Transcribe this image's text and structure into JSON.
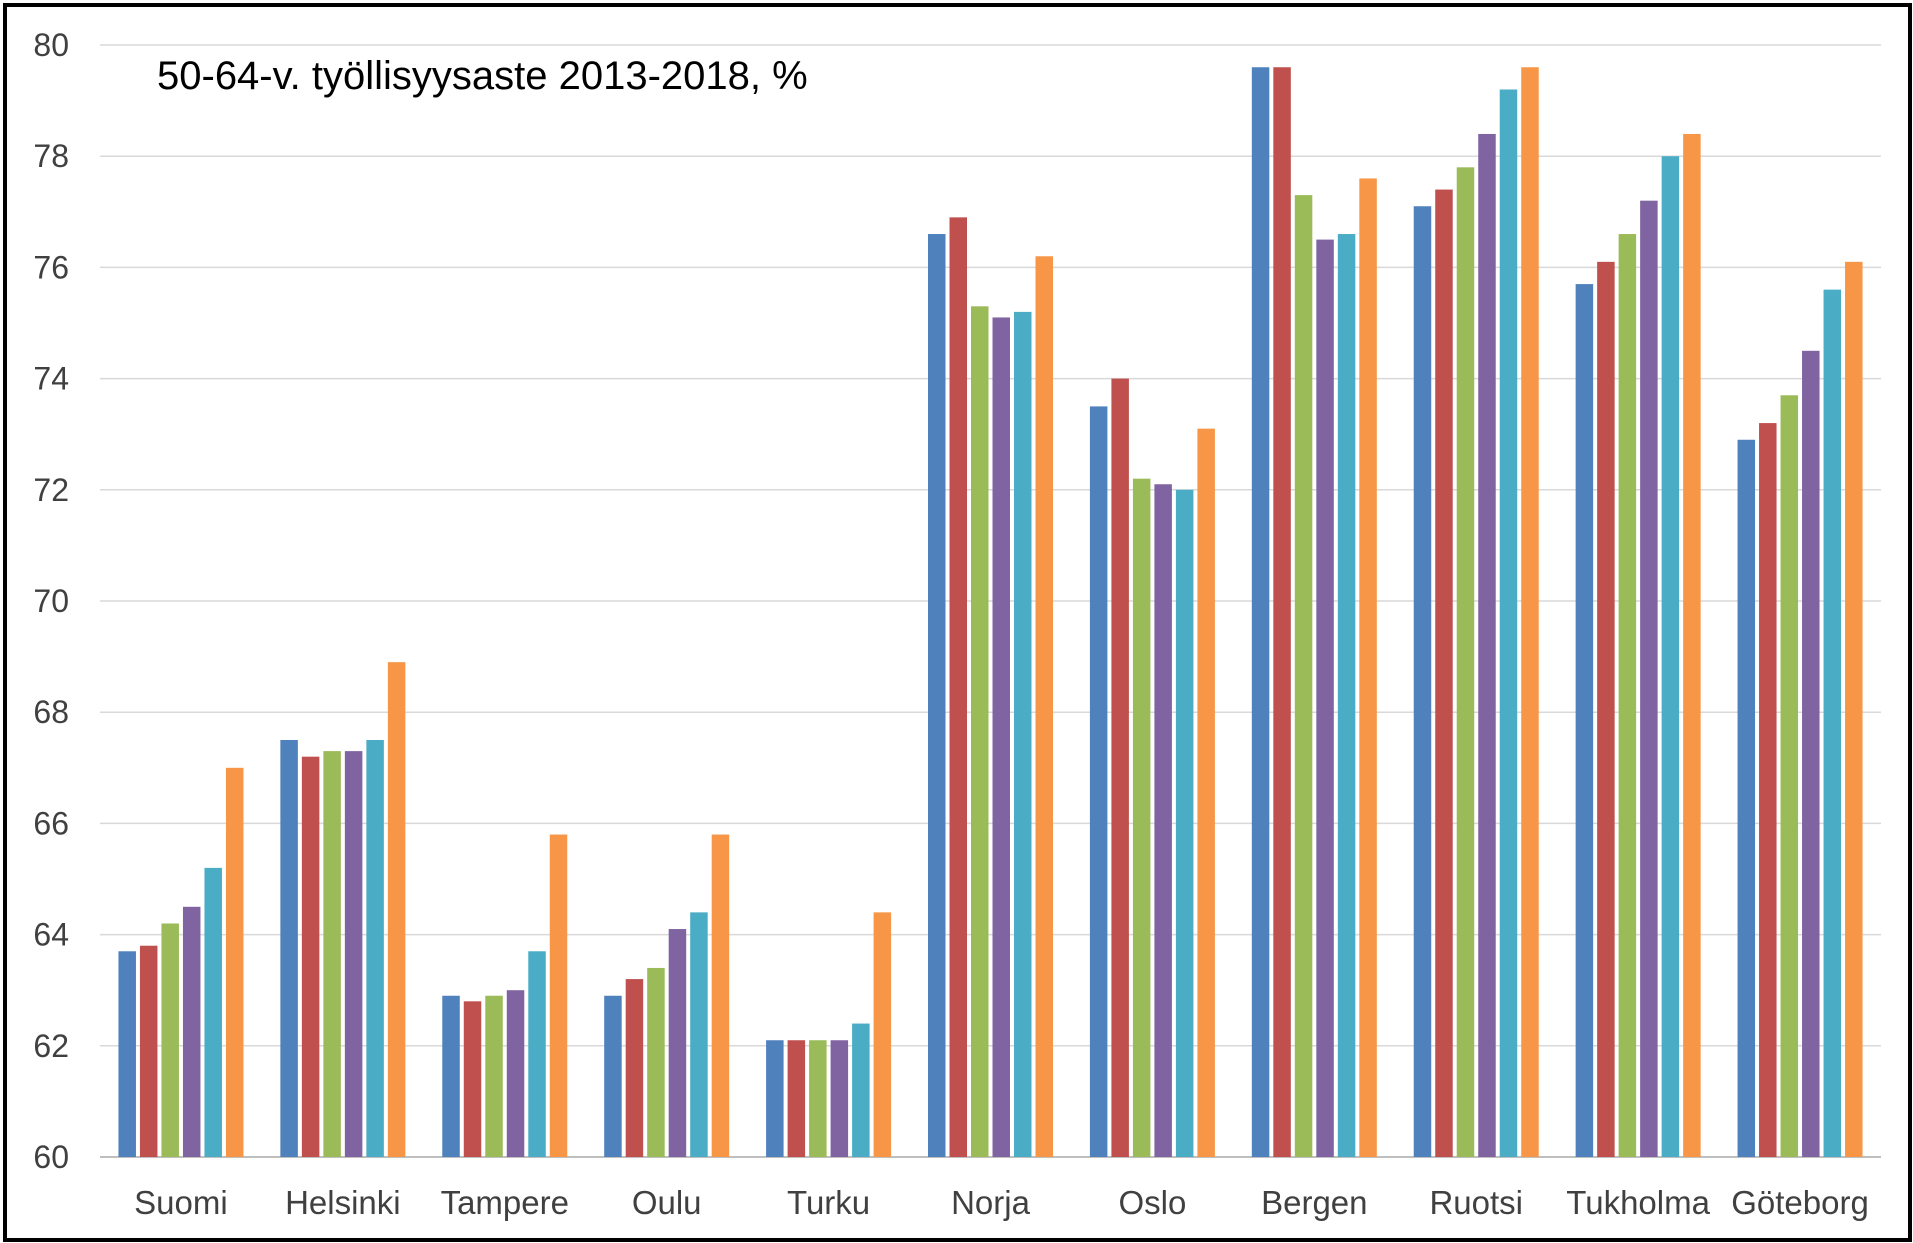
{
  "chart_data": {
    "type": "bar",
    "title": "50-64-v. työllisyysaste 2013-2018, %",
    "xlabel": "",
    "ylabel": "",
    "ylim": [
      60,
      80
    ],
    "yticks": [
      60,
      62,
      64,
      66,
      68,
      70,
      72,
      74,
      76,
      78,
      80
    ],
    "grid": true,
    "legend": "none",
    "categories": [
      "Suomi",
      "Helsinki",
      "Tampere",
      "Oulu",
      "Turku",
      "Norja",
      "Oslo",
      "Bergen",
      "Ruotsi",
      "Tukholma",
      "Göteborg"
    ],
    "series": [
      {
        "color": "#4f81bd",
        "values": [
          63.7,
          67.5,
          62.9,
          62.9,
          62.1,
          76.6,
          73.5,
          79.6,
          77.1,
          75.7,
          72.9
        ]
      },
      {
        "color": "#c0504d",
        "values": [
          63.8,
          67.2,
          62.8,
          63.2,
          62.1,
          76.9,
          74.0,
          79.6,
          77.4,
          76.1,
          73.2
        ]
      },
      {
        "color": "#9bbb59",
        "values": [
          64.2,
          67.3,
          62.9,
          63.4,
          62.1,
          75.3,
          72.2,
          77.3,
          77.8,
          76.6,
          73.7
        ]
      },
      {
        "color": "#8064a2",
        "values": [
          64.5,
          67.3,
          63.0,
          64.1,
          62.1,
          75.1,
          72.1,
          76.5,
          78.4,
          77.2,
          74.5
        ]
      },
      {
        "color": "#4bacc6",
        "values": [
          65.2,
          67.5,
          63.7,
          64.4,
          62.4,
          75.2,
          72.0,
          76.6,
          79.2,
          78.0,
          75.6
        ]
      },
      {
        "color": "#f79646",
        "values": [
          67.0,
          68.9,
          65.8,
          65.8,
          64.4,
          76.2,
          73.1,
          77.6,
          79.6,
          78.4,
          76.1
        ]
      }
    ]
  }
}
